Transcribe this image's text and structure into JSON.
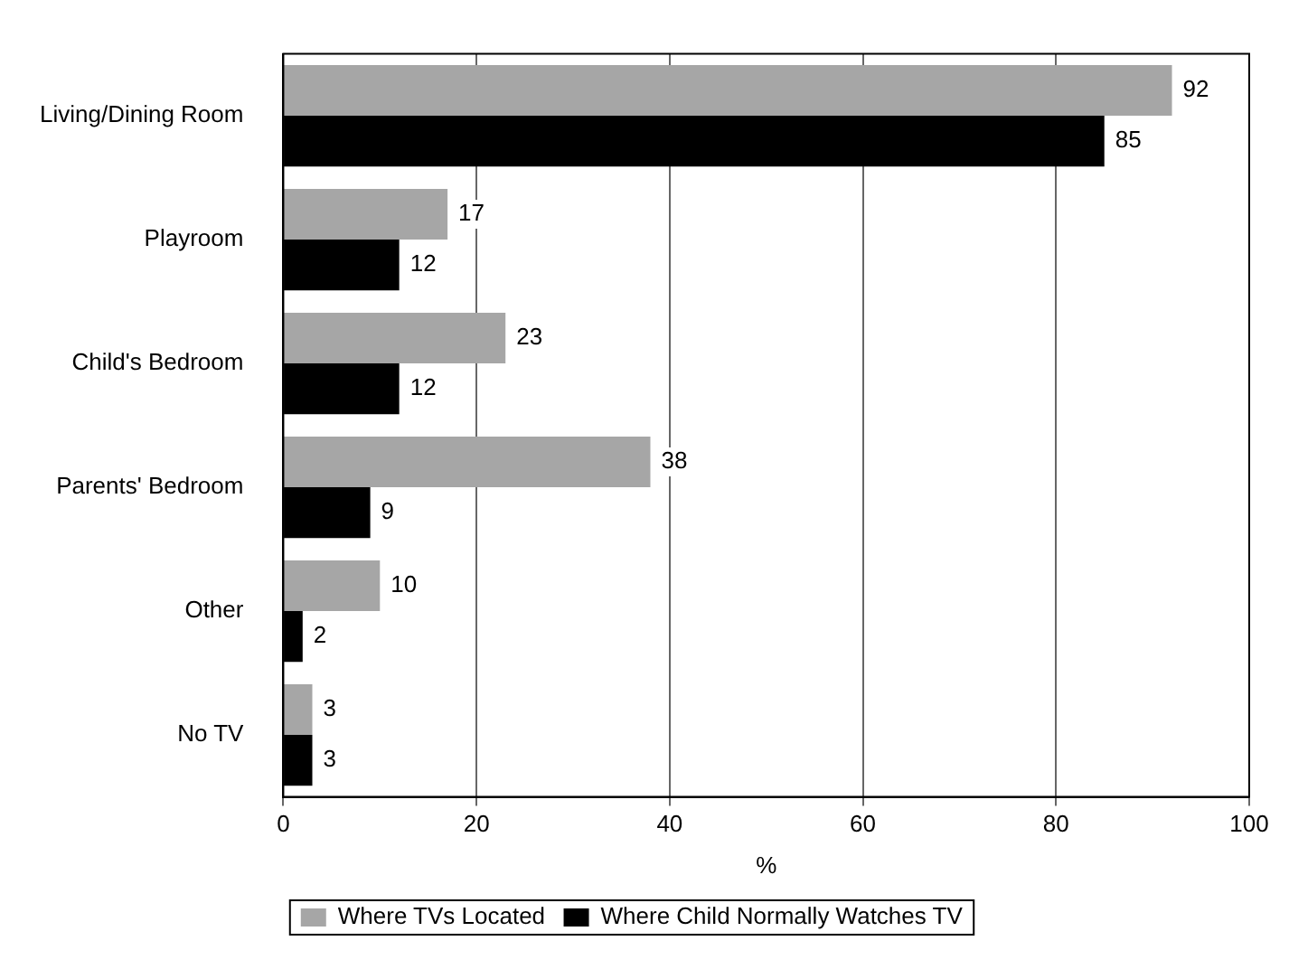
{
  "chart_data": {
    "type": "bar",
    "orientation": "horizontal",
    "categories": [
      "Living/Dining Room",
      "Playroom",
      "Child's Bedroom",
      "Parents' Bedroom",
      "Other",
      "No TV"
    ],
    "series": [
      {
        "name": "Where TVs Located",
        "color": "#a6a6a6",
        "values": [
          92,
          17,
          23,
          38,
          10,
          3
        ]
      },
      {
        "name": "Where Child Normally Watches TV",
        "color": "#000000",
        "values": [
          85,
          12,
          12,
          9,
          2,
          3
        ]
      }
    ],
    "xlabel": "%",
    "xlim": [
      0,
      100
    ],
    "xticks": [
      0,
      20,
      40,
      60,
      80,
      100
    ],
    "grid": "x",
    "legend": "bottom",
    "data_labels": true
  }
}
